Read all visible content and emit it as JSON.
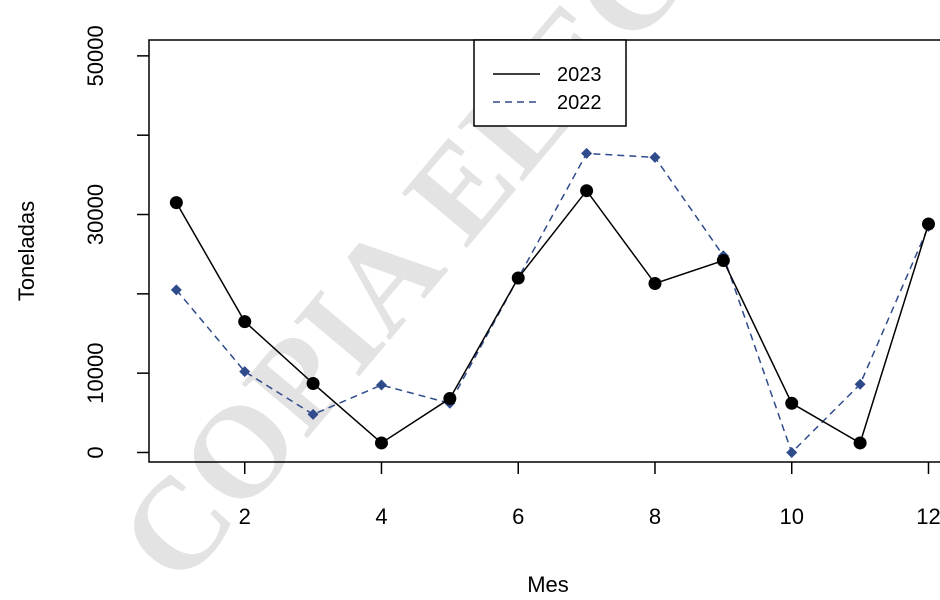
{
  "chart_data": {
    "type": "line",
    "title": "",
    "xlabel": "Mes",
    "ylabel": "Toneladas",
    "xlim": [
      0.6,
      12.3
    ],
    "ylim": [
      -1200,
      52000
    ],
    "x_ticks": [
      2,
      4,
      6,
      8,
      10,
      12
    ],
    "y_ticks": [
      0,
      10000,
      30000,
      50000
    ],
    "x_tick_labels": [
      "2",
      "4",
      "6",
      "8",
      "10",
      "12"
    ],
    "y_tick_labels": [
      "0",
      "10000",
      "30000",
      "50000"
    ],
    "grid": false,
    "legend_position": "top-center",
    "series": [
      {
        "name": "2023",
        "color": "#000000",
        "line_style": "solid",
        "marker": "circle",
        "x": [
          1,
          2,
          3,
          4,
          5,
          6,
          7,
          8,
          9,
          10,
          11,
          12
        ],
        "y": [
          31500,
          16500,
          8700,
          1200,
          6800,
          22000,
          33000,
          21300,
          24200,
          6200,
          1200,
          28800
        ]
      },
      {
        "name": "2022",
        "color": "#2f4b8c",
        "line_style": "dashed",
        "marker": "diamond",
        "x": [
          1,
          2,
          3,
          4,
          5,
          6,
          7,
          8,
          9,
          10,
          11,
          12
        ],
        "y": [
          20500,
          10200,
          4800,
          8500,
          6200,
          22000,
          37700,
          37200,
          24800,
          0,
          8600,
          28500
        ]
      }
    ]
  },
  "legend": {
    "items": [
      {
        "label": "2023",
        "color": "#000000",
        "line_style": "solid"
      },
      {
        "label": "2022",
        "color": "#2f4b8c",
        "line_style": "dashed"
      }
    ]
  },
  "watermark": {
    "text": "COPIA ELECTR",
    "color": "#d9d9d9"
  }
}
